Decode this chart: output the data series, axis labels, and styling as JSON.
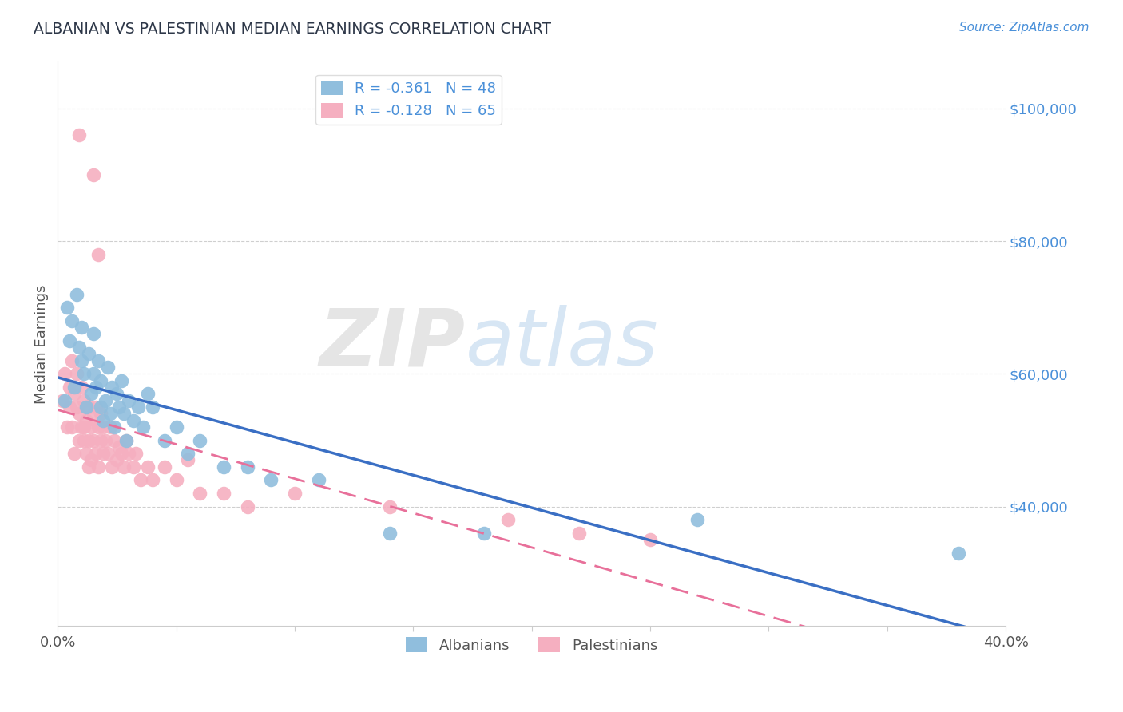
{
  "title": "ALBANIAN VS PALESTINIAN MEDIAN EARNINGS CORRELATION CHART",
  "source_text": "Source: ZipAtlas.com",
  "ylabel": "Median Earnings",
  "xlim": [
    0.0,
    0.4
  ],
  "ylim": [
    22000,
    107000
  ],
  "xticks": [
    0.0,
    0.05,
    0.1,
    0.15,
    0.2,
    0.25,
    0.3,
    0.35,
    0.4
  ],
  "xticklabels": [
    "0.0%",
    "",
    "",
    "",
    "",
    "",
    "",
    "",
    "40.0%"
  ],
  "ytick_values": [
    100000,
    80000,
    60000,
    40000
  ],
  "ytick_labels": [
    "$100,000",
    "$80,000",
    "$60,000",
    "$40,000"
  ],
  "albanian_color": "#90bedd",
  "albanian_line_color": "#3a6fc4",
  "palestinian_color": "#f5afc0",
  "palestinian_line_color": "#e8709a",
  "albanian_R": -0.361,
  "albanian_N": 48,
  "palestinian_R": -0.128,
  "palestinian_N": 65,
  "legend_label_albanian": "Albanians",
  "legend_label_palestinian": "Palestinians",
  "background_color": "#ffffff",
  "grid_color": "#bbbbbb",
  "title_color": "#2d3748",
  "axis_label_color": "#4a90d9",
  "tick_label_color": "#555555",
  "albanians_x": [
    0.003,
    0.004,
    0.005,
    0.006,
    0.007,
    0.008,
    0.009,
    0.01,
    0.01,
    0.011,
    0.012,
    0.013,
    0.014,
    0.015,
    0.015,
    0.016,
    0.017,
    0.018,
    0.018,
    0.019,
    0.02,
    0.021,
    0.022,
    0.023,
    0.024,
    0.025,
    0.026,
    0.027,
    0.028,
    0.029,
    0.03,
    0.032,
    0.034,
    0.036,
    0.038,
    0.04,
    0.045,
    0.05,
    0.055,
    0.06,
    0.07,
    0.08,
    0.09,
    0.11,
    0.14,
    0.18,
    0.27,
    0.38
  ],
  "albanians_y": [
    56000,
    70000,
    65000,
    68000,
    58000,
    72000,
    64000,
    62000,
    67000,
    60000,
    55000,
    63000,
    57000,
    66000,
    60000,
    58000,
    62000,
    55000,
    59000,
    53000,
    56000,
    61000,
    54000,
    58000,
    52000,
    57000,
    55000,
    59000,
    54000,
    50000,
    56000,
    53000,
    55000,
    52000,
    57000,
    55000,
    50000,
    52000,
    48000,
    50000,
    46000,
    46000,
    44000,
    44000,
    36000,
    36000,
    38000,
    33000
  ],
  "palestinians_x": [
    0.002,
    0.003,
    0.004,
    0.005,
    0.005,
    0.006,
    0.006,
    0.007,
    0.007,
    0.008,
    0.008,
    0.009,
    0.009,
    0.01,
    0.01,
    0.011,
    0.011,
    0.012,
    0.012,
    0.013,
    0.013,
    0.014,
    0.014,
    0.015,
    0.015,
    0.016,
    0.016,
    0.017,
    0.017,
    0.018,
    0.018,
    0.019,
    0.019,
    0.02,
    0.021,
    0.022,
    0.023,
    0.024,
    0.025,
    0.026,
    0.027,
    0.028,
    0.029,
    0.03,
    0.032,
    0.035,
    0.038,
    0.04,
    0.045,
    0.05,
    0.06,
    0.08,
    0.1,
    0.14,
    0.19,
    0.22,
    0.25,
    0.07,
    0.055,
    0.033,
    0.015,
    0.017,
    0.009,
    0.011,
    0.013
  ],
  "palestinians_y": [
    56000,
    60000,
    52000,
    58000,
    55000,
    62000,
    52000,
    57000,
    48000,
    55000,
    60000,
    50000,
    54000,
    52000,
    58000,
    50000,
    56000,
    53000,
    48000,
    55000,
    50000,
    52000,
    47000,
    54000,
    50000,
    48000,
    55000,
    52000,
    46000,
    50000,
    54000,
    48000,
    52000,
    50000,
    48000,
    52000,
    46000,
    50000,
    47000,
    49000,
    48000,
    46000,
    50000,
    48000,
    46000,
    44000,
    46000,
    44000,
    46000,
    44000,
    42000,
    40000,
    42000,
    40000,
    38000,
    36000,
    35000,
    42000,
    47000,
    48000,
    90000,
    78000,
    96000,
    52000,
    46000
  ]
}
